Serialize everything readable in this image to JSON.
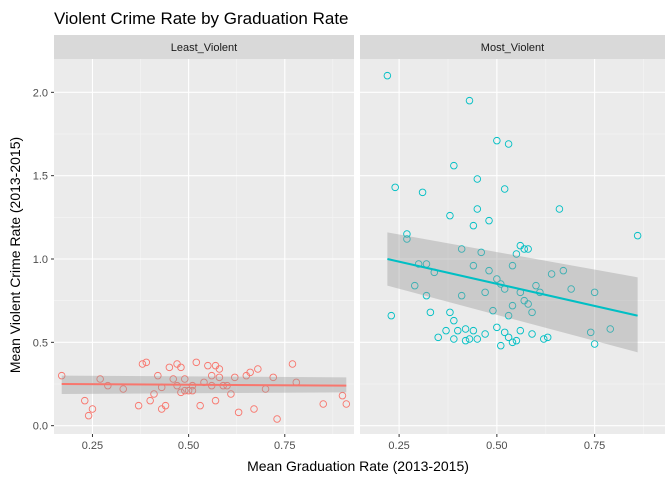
{
  "chart_data": {
    "type": "scatter",
    "title": "Violent Crime Rate by Graduation Rate",
    "xlabel": "Mean Graduation Rate (2013-2015)",
    "ylabel": "Mean Violent Crime Rate (2013-2015)",
    "xlim": [
      0.15,
      0.93
    ],
    "ylim": [
      -0.05,
      2.2
    ],
    "x_ticks": [
      0.25,
      0.5,
      0.75
    ],
    "x_tick_labels": [
      "0.25",
      "0.50",
      "0.75"
    ],
    "y_ticks": [
      0.0,
      0.5,
      1.0,
      1.5,
      2.0
    ],
    "y_tick_labels": [
      "0.0",
      "0.5",
      "1.0",
      "1.5",
      "2.0"
    ],
    "grid": true,
    "legend": "none",
    "facets": [
      {
        "name": "Least_Violent",
        "color": "#F8766D",
        "fit": {
          "x": [
            0.17,
            0.91
          ],
          "y": [
            0.25,
            0.24
          ],
          "ci_low": [
            0.19,
            0.2
          ],
          "ci_high": [
            0.3,
            0.29
          ]
        },
        "points": [
          [
            0.17,
            0.3
          ],
          [
            0.23,
            0.15
          ],
          [
            0.24,
            0.06
          ],
          [
            0.25,
            0.1
          ],
          [
            0.27,
            0.28
          ],
          [
            0.29,
            0.24
          ],
          [
            0.33,
            0.22
          ],
          [
            0.37,
            0.12
          ],
          [
            0.38,
            0.37
          ],
          [
            0.39,
            0.38
          ],
          [
            0.4,
            0.15
          ],
          [
            0.41,
            0.19
          ],
          [
            0.42,
            0.3
          ],
          [
            0.43,
            0.23
          ],
          [
            0.43,
            0.1
          ],
          [
            0.44,
            0.12
          ],
          [
            0.45,
            0.35
          ],
          [
            0.46,
            0.28
          ],
          [
            0.47,
            0.37
          ],
          [
            0.47,
            0.24
          ],
          [
            0.48,
            0.2
          ],
          [
            0.48,
            0.35
          ],
          [
            0.49,
            0.28
          ],
          [
            0.49,
            0.21
          ],
          [
            0.5,
            0.21
          ],
          [
            0.51,
            0.21
          ],
          [
            0.51,
            0.24
          ],
          [
            0.52,
            0.38
          ],
          [
            0.53,
            0.12
          ],
          [
            0.54,
            0.26
          ],
          [
            0.55,
            0.36
          ],
          [
            0.56,
            0.3
          ],
          [
            0.56,
            0.24
          ],
          [
            0.57,
            0.36
          ],
          [
            0.57,
            0.15
          ],
          [
            0.58,
            0.29
          ],
          [
            0.58,
            0.34
          ],
          [
            0.59,
            0.24
          ],
          [
            0.6,
            0.24
          ],
          [
            0.61,
            0.19
          ],
          [
            0.62,
            0.29
          ],
          [
            0.63,
            0.08
          ],
          [
            0.65,
            0.3
          ],
          [
            0.66,
            0.32
          ],
          [
            0.67,
            0.1
          ],
          [
            0.68,
            0.34
          ],
          [
            0.7,
            0.22
          ],
          [
            0.72,
            0.29
          ],
          [
            0.73,
            0.04
          ],
          [
            0.77,
            0.37
          ],
          [
            0.78,
            0.26
          ],
          [
            0.85,
            0.13
          ],
          [
            0.9,
            0.18
          ],
          [
            0.91,
            0.13
          ]
        ]
      },
      {
        "name": "Most_Violent",
        "color": "#00BFC4",
        "fit": {
          "x": [
            0.22,
            0.86
          ],
          "y": [
            1.0,
            0.66
          ],
          "ci_low": [
            0.84,
            0.44
          ],
          "ci_high": [
            1.16,
            0.89
          ]
        },
        "points": [
          [
            0.22,
            2.1
          ],
          [
            0.23,
            0.66
          ],
          [
            0.24,
            1.43
          ],
          [
            0.27,
            1.12
          ],
          [
            0.27,
            1.15
          ],
          [
            0.29,
            0.84
          ],
          [
            0.3,
            0.97
          ],
          [
            0.31,
            1.4
          ],
          [
            0.32,
            0.78
          ],
          [
            0.32,
            0.97
          ],
          [
            0.33,
            0.68
          ],
          [
            0.34,
            0.92
          ],
          [
            0.35,
            0.53
          ],
          [
            0.37,
            0.57
          ],
          [
            0.38,
            1.26
          ],
          [
            0.38,
            0.68
          ],
          [
            0.39,
            0.63
          ],
          [
            0.39,
            1.56
          ],
          [
            0.39,
            0.52
          ],
          [
            0.4,
            0.57
          ],
          [
            0.41,
            0.78
          ],
          [
            0.41,
            1.06
          ],
          [
            0.42,
            0.51
          ],
          [
            0.42,
            0.58
          ],
          [
            0.43,
            1.95
          ],
          [
            0.43,
            0.52
          ],
          [
            0.44,
            0.96
          ],
          [
            0.44,
            1.2
          ],
          [
            0.44,
            0.57
          ],
          [
            0.45,
            1.3
          ],
          [
            0.45,
            1.48
          ],
          [
            0.45,
            0.52
          ],
          [
            0.46,
            1.04
          ],
          [
            0.47,
            0.8
          ],
          [
            0.47,
            0.55
          ],
          [
            0.48,
            0.93
          ],
          [
            0.48,
            1.23
          ],
          [
            0.49,
            0.69
          ],
          [
            0.5,
            0.88
          ],
          [
            0.5,
            1.71
          ],
          [
            0.5,
            0.59
          ],
          [
            0.51,
            0.85
          ],
          [
            0.51,
            0.48
          ],
          [
            0.52,
            0.82
          ],
          [
            0.52,
            0.56
          ],
          [
            0.52,
            1.42
          ],
          [
            0.53,
            1.69
          ],
          [
            0.53,
            0.66
          ],
          [
            0.53,
            0.53
          ],
          [
            0.54,
            0.72
          ],
          [
            0.54,
            0.96
          ],
          [
            0.54,
            0.5
          ],
          [
            0.55,
            0.51
          ],
          [
            0.55,
            1.03
          ],
          [
            0.56,
            1.08
          ],
          [
            0.56,
            0.8
          ],
          [
            0.56,
            0.57
          ],
          [
            0.57,
            1.06
          ],
          [
            0.57,
            0.75
          ],
          [
            0.58,
            1.06
          ],
          [
            0.58,
            0.73
          ],
          [
            0.59,
            0.68
          ],
          [
            0.59,
            0.55
          ],
          [
            0.6,
            0.84
          ],
          [
            0.61,
            0.8
          ],
          [
            0.62,
            0.52
          ],
          [
            0.63,
            0.53
          ],
          [
            0.64,
            0.91
          ],
          [
            0.66,
            1.3
          ],
          [
            0.67,
            0.93
          ],
          [
            0.69,
            0.82
          ],
          [
            0.74,
            0.56
          ],
          [
            0.75,
            0.8
          ],
          [
            0.75,
            0.49
          ],
          [
            0.79,
            0.58
          ],
          [
            0.86,
            1.14
          ]
        ]
      }
    ]
  }
}
